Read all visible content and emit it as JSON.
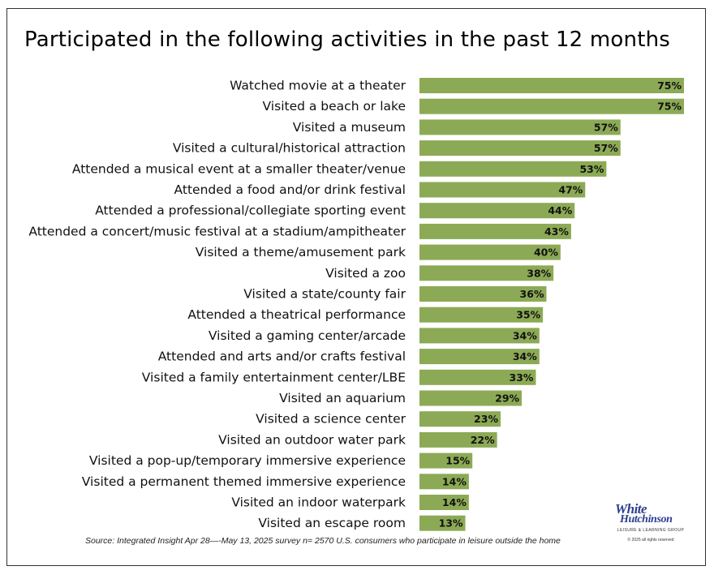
{
  "chart_data": {
    "type": "bar",
    "orientation": "horizontal",
    "title": "Participated in the following activities in the past 12 months",
    "categories": [
      "Watched movie at a theater",
      "Visited a beach or lake",
      "Visited a museum",
      "Visited a cultural/historical attraction",
      "Attended a musical event at a smaller theater/venue",
      "Attended a food and/or drink festival",
      "Attended a professional/collegiate sporting event",
      "Attended a concert/music festival at a stadium/ampitheater",
      "Visited a theme/amusement park",
      "Visited a zoo",
      "Visited a state/county fair",
      "Attended a theatrical performance",
      "Visited a gaming center/arcade",
      "Attended and arts and/or crafts festival",
      "Visited a family entertainment center/LBE",
      "Visited an aquarium",
      "Visited a science center",
      "Visited an outdoor water park",
      "Visited a pop-up/temporary immersive experience",
      "Visited a permanent themed immersive experience",
      "Visited an indoor waterpark",
      "Visited an escape room"
    ],
    "values": [
      75,
      75,
      57,
      57,
      53,
      47,
      44,
      43,
      40,
      38,
      36,
      35,
      34,
      34,
      33,
      29,
      23,
      22,
      15,
      14,
      14,
      13
    ],
    "value_labels": [
      "75%",
      "75%",
      "57%",
      "57%",
      "53%",
      "47%",
      "44%",
      "43%",
      "40%",
      "38%",
      "36%",
      "35%",
      "34%",
      "34%",
      "33%",
      "29%",
      "23%",
      "22%",
      "15%",
      "14%",
      "14%",
      "13%"
    ],
    "unit": "%",
    "xlim": [
      0,
      75
    ],
    "grid": false,
    "legend": "none",
    "bar_color": "#8caa55"
  },
  "footer": {
    "source": "Source: Integrated Insight Apr 28—-May 13, 2025 survey n= 2570 U.S. consumers who participate in leisure outside the home"
  },
  "logo": {
    "line1": "White",
    "line2": "Hutchinson",
    "tagline": "LEISURE & LEARNING GROUP",
    "copyright": "© 2025 all rights reserved",
    "color": "#2b3f8f"
  }
}
